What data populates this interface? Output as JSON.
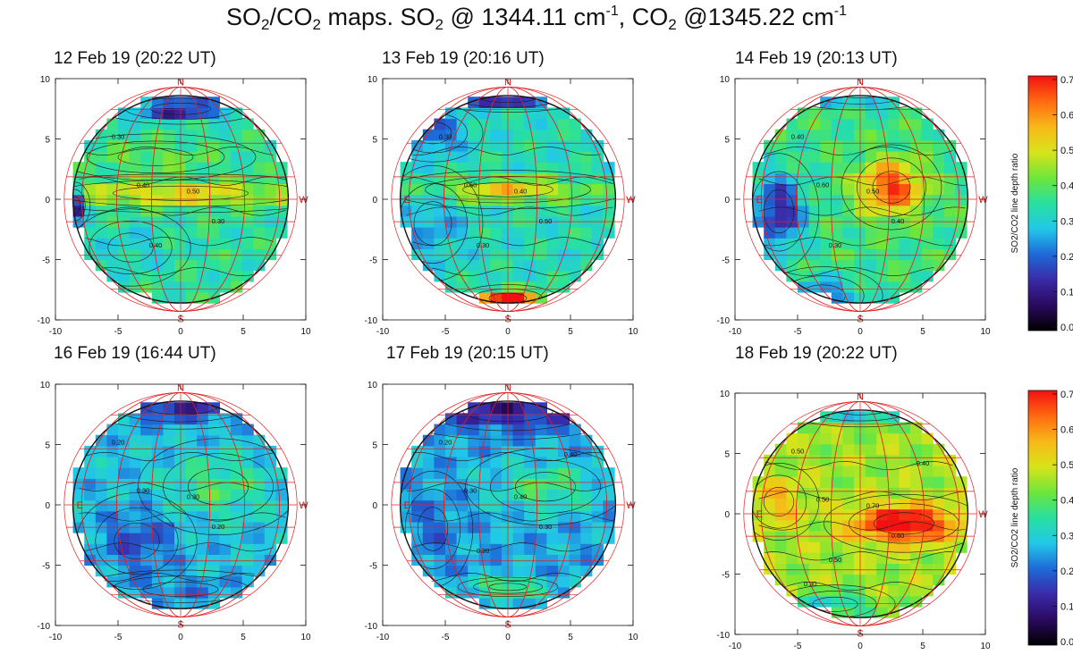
{
  "figure_title": {
    "text_a": "SO",
    "sub_a": "2",
    "text_b": "/CO",
    "sub_b": "2",
    "text_c": " maps.  SO",
    "sub_c": "2",
    "text_d": " @ 1344.11 cm",
    "sup_d": "-1",
    "text_e": ", CO",
    "sub_e": "2",
    "text_f": " @1345.22 cm",
    "sup_f": "-1"
  },
  "directions": {
    "north": "N",
    "south": "S",
    "east": "E",
    "west": "W"
  },
  "colorbar": {
    "label": "SO2/CO2 line depth ratio",
    "range": [
      0.0,
      0.7
    ],
    "ticks": [
      "0.0",
      "0.1",
      "0.2",
      "0.3",
      "0.4",
      "0.5",
      "0.6",
      "0.7"
    ],
    "colormap": [
      "#000000",
      "#2a0a5e",
      "#3a2aa8",
      "#1e6ad8",
      "#22c8e8",
      "#28e0a0",
      "#6ee63a",
      "#d8e41a",
      "#f8b818",
      "#ff6a10",
      "#f41010"
    ]
  },
  "chart_data": [
    {
      "type": "heatmap",
      "title": "12 Feb 19 (20:22 UT)",
      "xlim": [
        -10,
        10
      ],
      "ylim": [
        -10,
        10
      ],
      "xticks": [
        "-10",
        "-5",
        "0",
        "5",
        "10"
      ],
      "yticks": [
        "-10",
        "-5",
        "0",
        "5",
        "10"
      ],
      "contour_labels": [
        "0.30",
        "0.40",
        "0.50",
        "0.30",
        "0.40"
      ],
      "value_range": [
        0.0,
        0.7
      ],
      "features": [
        {
          "x": 0,
          "y": 0.5,
          "sx": 9,
          "sy": 1.0,
          "v": 0.18
        },
        {
          "x": -2,
          "y": 3.5,
          "sx": 5,
          "sy": 1.2,
          "v": 0.06
        },
        {
          "x": 0,
          "y": 7.5,
          "sx": 4,
          "sy": 0.8,
          "v": -0.25
        },
        {
          "x": -8.5,
          "y": -0.5,
          "sx": 0.8,
          "sy": 1.2,
          "v": -0.3
        },
        {
          "x": -4,
          "y": -4,
          "sx": 3,
          "sy": 2,
          "v": -0.05
        }
      ],
      "base": 0.35
    },
    {
      "type": "heatmap",
      "title": "13 Feb 19 (20:16 UT)",
      "xlim": [
        -10,
        10
      ],
      "ylim": [
        -10,
        10
      ],
      "xticks": [
        "-10",
        "-5",
        "0",
        "5",
        "10"
      ],
      "yticks": [
        "-10",
        "-5",
        "0",
        "5",
        "10"
      ],
      "contour_labels": [
        "0.30",
        "0.50",
        "0.40",
        "0.50",
        "0.30"
      ],
      "value_range": [
        0.0,
        0.7
      ],
      "features": [
        {
          "x": 0,
          "y": 0.8,
          "sx": 6,
          "sy": 1.0,
          "v": 0.2
        },
        {
          "x": 0,
          "y": -8.2,
          "sx": 2.5,
          "sy": 0.7,
          "v": 0.4
        },
        {
          "x": -6,
          "y": 5.5,
          "sx": 2.5,
          "sy": 1.5,
          "v": -0.15
        },
        {
          "x": 0,
          "y": 8.5,
          "sx": 4,
          "sy": 0.8,
          "v": -0.25
        },
        {
          "x": -6,
          "y": -2,
          "sx": 2.5,
          "sy": 3,
          "v": -0.08
        }
      ],
      "base": 0.33
    },
    {
      "type": "heatmap",
      "title": "14 Feb 19 (20:13 UT)",
      "xlim": [
        -10,
        10
      ],
      "ylim": [
        -10,
        10
      ],
      "xticks": [
        "-10",
        "-5",
        "0",
        "5",
        "10"
      ],
      "yticks": [
        "-10",
        "-5",
        "0",
        "5",
        "10"
      ],
      "contour_labels": [
        "0.40",
        "0.60",
        "0.50",
        "0.40",
        "0.30"
      ],
      "value_range": [
        0.0,
        0.7
      ],
      "features": [
        {
          "x": 2.5,
          "y": 1,
          "sx": 2.5,
          "sy": 2.2,
          "v": 0.3
        },
        {
          "x": -6.5,
          "y": -1,
          "sx": 2,
          "sy": 3,
          "v": -0.25
        },
        {
          "x": 0,
          "y": 9,
          "sx": 4,
          "sy": 1.0,
          "v": -0.25
        },
        {
          "x": -3,
          "y": -8,
          "sx": 3,
          "sy": 1.5,
          "v": -0.15
        }
      ],
      "base": 0.37
    },
    {
      "type": "heatmap",
      "title": "16 Feb 19 (16:44 UT)",
      "xlim": [
        -10,
        10
      ],
      "ylim": [
        -10,
        10
      ],
      "xticks": [
        "-10",
        "-5",
        "0",
        "5",
        "10"
      ],
      "yticks": [
        "-10",
        "-5",
        "0",
        "5",
        "10"
      ],
      "contour_labels": [
        "0.20",
        "0.30",
        "0.30",
        "0.20"
      ],
      "value_range": [
        0.0,
        0.7
      ],
      "features": [
        {
          "x": 3,
          "y": 1.5,
          "sx": 4,
          "sy": 2.5,
          "v": 0.1
        },
        {
          "x": -3.5,
          "y": -3,
          "sx": 3,
          "sy": 2.5,
          "v": -0.1
        },
        {
          "x": 0,
          "y": 8.2,
          "sx": 5,
          "sy": 1.2,
          "v": -0.15
        },
        {
          "x": 0,
          "y": -7,
          "sx": 5,
          "sy": 1.0,
          "v": -0.05
        }
      ],
      "base": 0.28
    },
    {
      "type": "heatmap",
      "title": "17 Feb 19 (20:15 UT)",
      "xlim": [
        -10,
        10
      ],
      "ylim": [
        -10,
        10
      ],
      "xticks": [
        "-10",
        "-5",
        "0",
        "5",
        "10"
      ],
      "yticks": [
        "-10",
        "-5",
        "0",
        "5",
        "10"
      ],
      "contour_labels": [
        "0.20",
        "0.30",
        "0.40",
        "0.30",
        "0.20",
        "0.40"
      ],
      "value_range": [
        0.0,
        0.7
      ],
      "features": [
        {
          "x": 3,
          "y": 1.5,
          "sx": 4,
          "sy": 2,
          "v": 0.12
        },
        {
          "x": 0,
          "y": 7.8,
          "sx": 6,
          "sy": 1.5,
          "v": -0.15
        },
        {
          "x": -6,
          "y": -2,
          "sx": 2,
          "sy": 3,
          "v": -0.05
        },
        {
          "x": 0,
          "y": -6.8,
          "sx": 2.5,
          "sy": 0.5,
          "v": 0.3
        }
      ],
      "base": 0.26
    },
    {
      "type": "heatmap",
      "title": "18 Feb 19 (20:22 UT)",
      "xlim": [
        -10,
        10
      ],
      "ylim": [
        -10,
        10
      ],
      "xticks": [
        "-10",
        "-5",
        "0",
        "5",
        "10"
      ],
      "yticks": [
        "-10",
        "-5",
        "0",
        "5",
        "10"
      ],
      "contour_labels": [
        "0.50",
        "0.50",
        "0.70",
        "0.60",
        "0.50",
        "0.40",
        "0.30"
      ],
      "value_range": [
        0.0,
        0.7
      ],
      "features": [
        {
          "x": 3.5,
          "y": -0.8,
          "sx": 4,
          "sy": 1.5,
          "v": 0.3
        },
        {
          "x": -6.5,
          "y": 1,
          "sx": 2,
          "sy": 2,
          "v": 0.1
        },
        {
          "x": 0,
          "y": 8.8,
          "sx": 4,
          "sy": 1.0,
          "v": -0.3
        },
        {
          "x": -2,
          "y": -7.5,
          "sx": 3,
          "sy": 1.0,
          "v": -0.15
        }
      ],
      "base": 0.45
    }
  ]
}
